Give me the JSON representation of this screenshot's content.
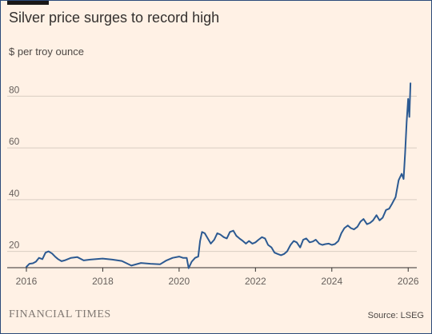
{
  "header": {
    "title": "Silver price surges to record high",
    "subtitle": "$ per troy ounce"
  },
  "footer": {
    "brand": "FINANCIAL TIMES",
    "source": "Source: LSEG"
  },
  "colors": {
    "background": "#fff1e5",
    "line": "#2c5a92",
    "grid": "#d9cdc2",
    "axis": "#33302e",
    "text": "#33302e"
  },
  "chart_data": {
    "type": "line",
    "title": "Silver price surges to record high",
    "subtitle": "$ per troy ounce",
    "xlabel": "",
    "ylabel": "",
    "x_range": [
      2016,
      2026.1
    ],
    "ylim": [
      14,
      86
    ],
    "x_ticks": [
      "2016",
      "2018",
      "2020",
      "2022",
      "2024",
      "2026"
    ],
    "y_ticks": [
      "20",
      "40",
      "60",
      "80"
    ],
    "grid": "horizontal",
    "legend": "none",
    "series": [
      {
        "name": "",
        "color": "#2c5a92",
        "x": [
          2016.0,
          2016.08,
          2016.17,
          2016.25,
          2016.33,
          2016.42,
          2016.5,
          2016.58,
          2016.67,
          2016.75,
          2016.83,
          2016.92,
          2017.0,
          2017.17,
          2017.33,
          2017.5,
          2017.67,
          2017.83,
          2018.0,
          2018.25,
          2018.5,
          2018.75,
          2019.0,
          2019.25,
          2019.5,
          2019.67,
          2019.83,
          2020.0,
          2020.1,
          2020.2,
          2020.25,
          2020.33,
          2020.42,
          2020.5,
          2020.55,
          2020.6,
          2020.67,
          2020.75,
          2020.83,
          2020.92,
          2021.0,
          2021.08,
          2021.17,
          2021.25,
          2021.33,
          2021.42,
          2021.5,
          2021.58,
          2021.67,
          2021.75,
          2021.83,
          2021.92,
          2022.0,
          2022.08,
          2022.17,
          2022.25,
          2022.33,
          2022.42,
          2022.5,
          2022.58,
          2022.67,
          2022.75,
          2022.83,
          2022.92,
          2023.0,
          2023.08,
          2023.17,
          2023.25,
          2023.33,
          2023.42,
          2023.5,
          2023.58,
          2023.67,
          2023.75,
          2023.83,
          2023.92,
          2024.0,
          2024.08,
          2024.17,
          2024.25,
          2024.33,
          2024.42,
          2024.5,
          2024.58,
          2024.67,
          2024.75,
          2024.83,
          2024.92,
          2025.0,
          2025.08,
          2025.17,
          2025.25,
          2025.33,
          2025.42,
          2025.5,
          2025.58,
          2025.67,
          2025.75,
          2025.83,
          2025.88,
          2025.92,
          2025.96,
          2026.0,
          2026.03,
          2026.06
        ],
        "values": [
          14.0,
          15.2,
          15.4,
          16.0,
          17.5,
          17.0,
          19.5,
          20.0,
          19.2,
          18.0,
          17.0,
          16.2,
          16.5,
          17.5,
          17.8,
          16.5,
          16.8,
          17.0,
          17.2,
          16.8,
          16.3,
          14.5,
          15.5,
          15.2,
          15.0,
          16.5,
          17.5,
          18.0,
          17.5,
          17.5,
          13.5,
          16.0,
          17.5,
          18.0,
          24.0,
          27.5,
          27.0,
          25.0,
          23.0,
          24.5,
          27.0,
          26.5,
          25.5,
          25.0,
          27.5,
          28.0,
          26.0,
          25.0,
          24.0,
          23.0,
          24.0,
          23.0,
          23.5,
          24.5,
          25.5,
          25.0,
          22.5,
          21.5,
          19.5,
          19.0,
          18.5,
          19.0,
          20.0,
          22.5,
          24.0,
          23.5,
          21.5,
          24.5,
          25.0,
          23.5,
          23.8,
          24.5,
          23.0,
          22.5,
          22.8,
          23.0,
          22.5,
          22.8,
          24.0,
          27.0,
          29.0,
          30.0,
          29.0,
          28.5,
          29.5,
          31.5,
          32.5,
          30.5,
          31.0,
          32.0,
          34.0,
          32.0,
          33.0,
          36.0,
          36.5,
          38.5,
          41.0,
          47.5,
          50.0,
          48.0,
          58.0,
          70.0,
          79.0,
          72.0,
          85.0
        ]
      }
    ]
  }
}
